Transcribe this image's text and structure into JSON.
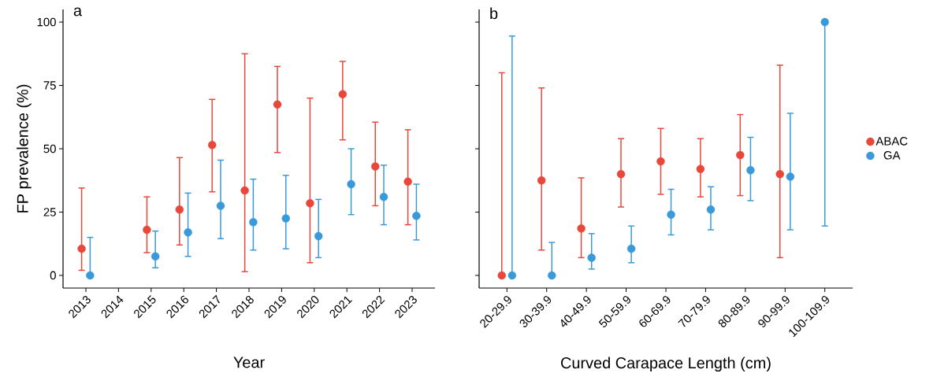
{
  "chart_data": [
    {
      "type": "scatter",
      "title": "a",
      "xlabel": "Year",
      "ylabel": "FP prevalence (%)",
      "categories": [
        "2013",
        "2014",
        "2015",
        "2016",
        "2017",
        "2018",
        "2019",
        "2020",
        "2021",
        "2022",
        "2023"
      ],
      "ylim": [
        -5,
        105
      ],
      "yticks": [
        0,
        25,
        50,
        75,
        100
      ],
      "marker": "circle",
      "legend": false,
      "series": [
        {
          "color": "#e8473a",
          "values": [
            10.5,
            null,
            18,
            26,
            51.5,
            33.5,
            67.5,
            28.5,
            71.5,
            43,
            37
          ],
          "errors": [
            [
              2,
              34.5
            ],
            null,
            [
              9,
              31
            ],
            [
              12,
              46.5
            ],
            [
              33,
              69.5
            ],
            [
              1.5,
              87.5
            ],
            [
              48.5,
              82.5
            ],
            [
              5,
              70
            ],
            [
              53.5,
              84.5
            ],
            [
              27.5,
              60.5
            ],
            [
              20,
              57.5
            ]
          ]
        },
        {
          "color": "#3a9ad9",
          "values": [
            0,
            null,
            7.5,
            17,
            27.5,
            21,
            22.5,
            15.5,
            36,
            31,
            23.5
          ],
          "errors": [
            [
              0,
              15
            ],
            null,
            [
              3,
              17.5
            ],
            [
              7.5,
              32.5
            ],
            [
              14.5,
              45.5
            ],
            [
              10,
              38
            ],
            [
              10.5,
              39.5
            ],
            [
              7,
              30
            ],
            [
              24,
              50
            ],
            [
              20,
              43.5
            ],
            [
              14,
              36
            ]
          ]
        }
      ]
    },
    {
      "type": "scatter",
      "title": "b",
      "xlabel": "Curved Carapace Length (cm)",
      "categories": [
        "20-29.9",
        "30-39.9",
        "40-49.9",
        "50-59.9",
        "60-69.9",
        "70-79.9",
        "80-89.9",
        "90-99.9",
        "100-109.9"
      ],
      "ylim": [
        -5,
        105
      ],
      "yticks": [
        0,
        25,
        50,
        75,
        100
      ],
      "tick_labels": "x",
      "marker": "circle",
      "legend": "right",
      "series": [
        {
          "name": "ABAC",
          "color": "#e8473a",
          "values": [
            0,
            37.5,
            18.5,
            40,
            45,
            42,
            47.5,
            40,
            null
          ],
          "errors": [
            [
              0,
              80
            ],
            [
              10,
              74
            ],
            [
              7,
              38.5
            ],
            [
              27,
              54
            ],
            [
              32,
              58
            ],
            [
              31,
              54
            ],
            [
              31.5,
              63.5
            ],
            [
              7,
              83
            ],
            null
          ]
        },
        {
          "name": "GA",
          "color": "#3a9ad9",
          "values": [
            0,
            0,
            7,
            10.5,
            24,
            26,
            41.5,
            39,
            100
          ],
          "errors": [
            [
              0,
              94.5
            ],
            [
              0,
              13
            ],
            [
              2.5,
              16.5
            ],
            [
              5,
              19.5
            ],
            [
              16,
              34
            ],
            [
              18,
              35
            ],
            [
              29.5,
              54.5
            ],
            [
              18,
              64
            ],
            [
              19.5,
              100
            ]
          ]
        }
      ]
    }
  ]
}
